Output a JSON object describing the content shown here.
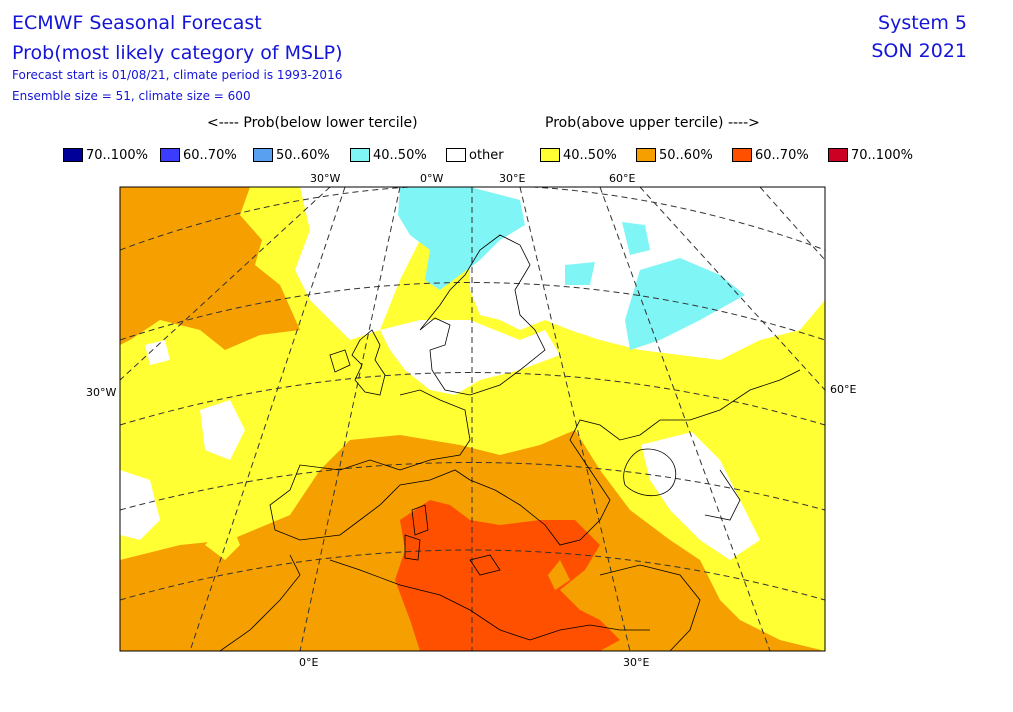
{
  "header": {
    "title": "ECMWF Seasonal Forecast",
    "subtitle": "Prob(most likely category of MSLP)",
    "forecast_info": "Forecast start is 01/08/21, climate period is 1993-2016",
    "ensemble_info": "Ensemble size = 51, climate size = 600",
    "system": "System 5",
    "season": "SON 2021"
  },
  "legend": {
    "below_header": "<---- Prob(below lower tercile)",
    "above_header": "Prob(above upper tercile) ---->",
    "items": [
      {
        "label": "70..100%",
        "color": "#000099"
      },
      {
        "label": "60..70%",
        "color": "#3c3cff"
      },
      {
        "label": "50..60%",
        "color": "#5aa0f0"
      },
      {
        "label": "40..50%",
        "color": "#7ff5f5"
      },
      {
        "label": "other",
        "color": "#ffffff"
      },
      {
        "label": "40..50%",
        "color": "#ffff33"
      },
      {
        "label": "50..60%",
        "color": "#f5a000"
      },
      {
        "label": "60..70%",
        "color": "#ff5000"
      },
      {
        "label": "70..100%",
        "color": "#cc0022"
      }
    ]
  },
  "map": {
    "top_ticks": [
      "30°W",
      "0°W",
      "30°E",
      "60°E"
    ],
    "left_tick": "30°W",
    "right_tick": "60°E",
    "bottom_ticks": [
      "0°E",
      "30°E"
    ],
    "colors": {
      "ocean_default": "#ffff33",
      "cat50_60": "#f5a000",
      "cat60_70": "#ff5000",
      "cat40_50_below": "#7ff5f5",
      "other": "#ffffff",
      "coast": "#000000",
      "grid": "#333333"
    }
  }
}
